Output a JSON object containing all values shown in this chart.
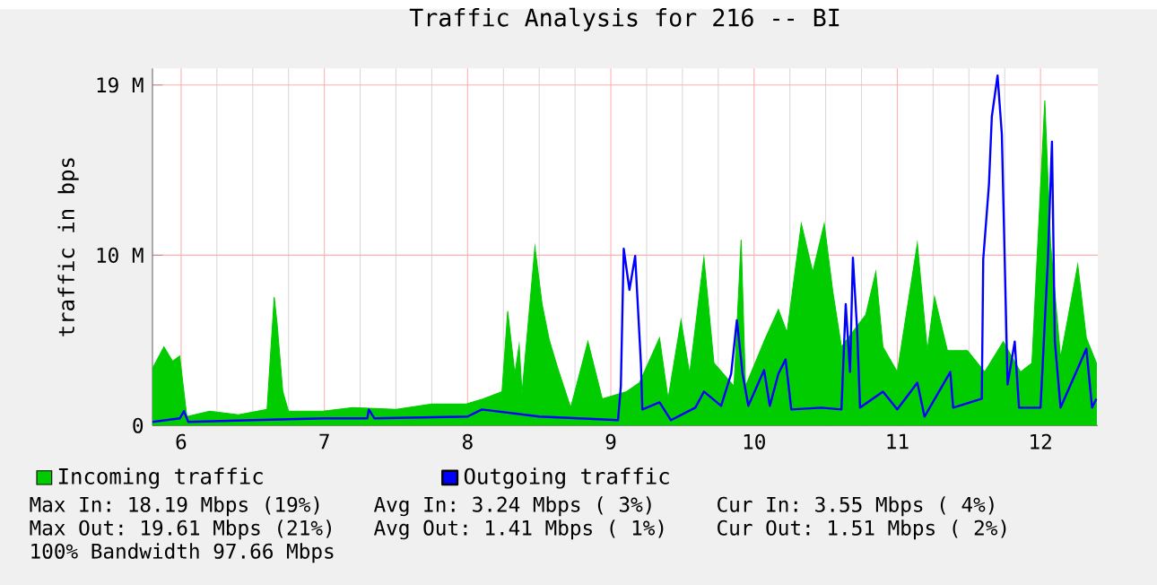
{
  "chart_data": {
    "type": "area",
    "title": "Traffic Analysis for 216 -- BI",
    "ylabel": "traffic in bps",
    "xlim": [
      5.8,
      12.4
    ],
    "xticks": [
      6,
      7,
      8,
      9,
      10,
      11,
      12
    ],
    "ylim": [
      0,
      20.0
    ],
    "yticks": [
      0,
      {
        "value": 9.54,
        "label": "10 M"
      },
      {
        "value": 19.07,
        "label": "19 M"
      }
    ],
    "grid": true,
    "legend": "bottom",
    "series": [
      {
        "name": "Incoming traffic",
        "color": "#00cc00",
        "x": [
          5.8,
          5.88,
          5.94,
          5.99,
          6.04,
          6.2,
          6.4,
          6.6,
          6.65,
          6.67,
          6.71,
          6.75,
          6.99,
          7.2,
          7.5,
          7.75,
          7.99,
          8.11,
          8.24,
          8.28,
          8.33,
          8.36,
          8.38,
          8.47,
          8.52,
          8.57,
          8.63,
          8.72,
          8.84,
          8.94,
          9.11,
          9.2,
          9.34,
          9.4,
          9.49,
          9.55,
          9.65,
          9.72,
          9.86,
          9.91,
          9.94,
          10.08,
          10.17,
          10.23,
          10.33,
          10.41,
          10.49,
          10.55,
          10.61,
          10.78,
          10.85,
          10.9,
          11.0,
          11.14,
          11.21,
          11.26,
          11.35,
          11.49,
          11.61,
          11.74,
          11.86,
          11.94,
          12.03,
          12.07,
          12.14,
          12.26,
          12.32,
          12.39
        ],
        "values": [
          3.2,
          4.4,
          3.6,
          3.9,
          0.5,
          0.8,
          0.6,
          0.9,
          7.2,
          5.7,
          1.9,
          0.8,
          0.8,
          1.0,
          0.9,
          1.2,
          1.2,
          1.5,
          1.9,
          6.4,
          2.9,
          4.5,
          1.8,
          10.0,
          6.8,
          4.8,
          3.2,
          1.0,
          4.7,
          1.5,
          1.9,
          2.4,
          4.9,
          1.5,
          5.9,
          2.9,
          9.4,
          3.5,
          2.2,
          10.4,
          2.2,
          4.9,
          6.5,
          5.2,
          11.3,
          8.6,
          11.3,
          7.5,
          4.4,
          6.2,
          8.6,
          4.4,
          3.0,
          10.2,
          4.2,
          7.2,
          4.2,
          4.2,
          3.0,
          4.7,
          3.0,
          3.5,
          18.2,
          10.2,
          3.8,
          9.0,
          4.9,
          3.5
        ]
      },
      {
        "name": "Outgoing traffic",
        "type": "line",
        "color": "#0000ff",
        "x": [
          5.8,
          5.99,
          6.02,
          6.05,
          6.5,
          7.0,
          7.3,
          7.31,
          7.35,
          8.0,
          8.1,
          8.5,
          9.05,
          9.07,
          9.09,
          9.13,
          9.17,
          9.21,
          9.22,
          9.34,
          9.42,
          9.59,
          9.65,
          9.77,
          9.84,
          9.88,
          9.92,
          9.96,
          10.07,
          10.11,
          10.17,
          10.22,
          10.26,
          10.47,
          10.61,
          10.64,
          10.67,
          10.69,
          10.72,
          10.74,
          10.9,
          11.0,
          11.14,
          11.19,
          11.37,
          11.39,
          11.59,
          11.6,
          11.64,
          11.66,
          11.7,
          11.73,
          11.75,
          11.77,
          11.82,
          11.85,
          12.0,
          12.05,
          12.08,
          12.1,
          12.14,
          12.32,
          12.36,
          12.39
        ],
        "values": [
          0.2,
          0.4,
          0.8,
          0.2,
          0.3,
          0.4,
          0.4,
          0.9,
          0.4,
          0.5,
          0.9,
          0.5,
          0.3,
          2.2,
          9.9,
          7.6,
          9.5,
          3.5,
          0.9,
          1.3,
          0.3,
          1.0,
          1.9,
          1.1,
          2.9,
          5.9,
          2.9,
          1.1,
          3.1,
          1.1,
          2.9,
          3.7,
          0.9,
          1.0,
          0.9,
          6.8,
          3.0,
          9.4,
          5.3,
          1.0,
          1.9,
          0.9,
          2.4,
          0.5,
          3.0,
          1.0,
          1.5,
          9.3,
          13.5,
          17.3,
          19.6,
          16.3,
          9.3,
          2.3,
          4.7,
          1.0,
          1.0,
          9.0,
          15.9,
          4.7,
          1.0,
          4.3,
          1.0,
          1.5
        ]
      }
    ],
    "annotations": [
      "Max In:  18.19 Mbps (19%)",
      "Avg In:   3.24 Mbps ( 3%)",
      "Cur In:   3.55 Mbps ( 4%)",
      "Max Out: 19.61 Mbps (21%)",
      "Avg Out:  1.41 Mbps ( 1%)",
      "Cur Out:  1.51 Mbps ( 2%)",
      "100% Bandwidth 97.66 Mbps"
    ]
  }
}
